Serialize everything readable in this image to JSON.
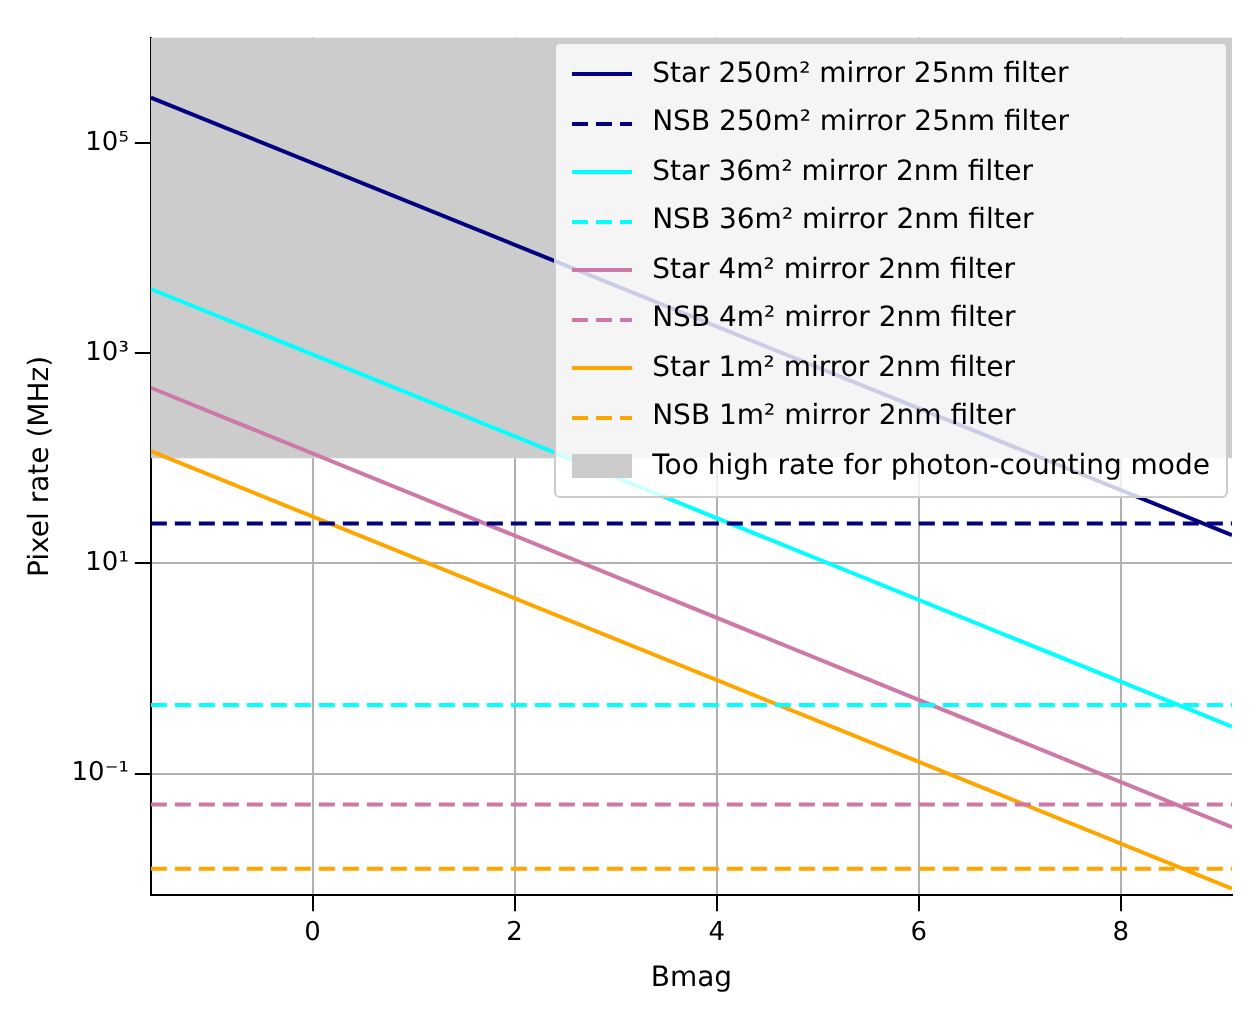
{
  "chart_data": {
    "type": "line",
    "xlabel": "Bmag",
    "ylabel": "Pixel rate (MHz)",
    "log": "y",
    "grid": true,
    "legend": "top right",
    "line_style": "solid",
    "marker": "none",
    "xlim": [
      -1.6,
      9.1
    ],
    "xticks": [
      0,
      2,
      4,
      6,
      8
    ],
    "ylim": [
      0.007,
      1000000
    ],
    "yticks": [
      {
        "value": 0.1,
        "label": "10⁻¹"
      },
      {
        "value": 10,
        "label": "10¹"
      },
      {
        "value": 1000,
        "label": "10³"
      },
      {
        "value": 100000,
        "label": "10⁵"
      }
    ],
    "x": [
      -1.6,
      9.1
    ],
    "series": [
      {
        "name": "Star 250m² mirror 25nm filter",
        "color": "#000080",
        "values": [
          269000,
          18.6
        ]
      },
      {
        "name": "NSB 250m² mirror 25nm filter",
        "color": "#000080",
        "values": [
          24,
          24
        ],
        "line_style": "dashed"
      },
      {
        "name": "Star 36m² mirror 2nm filter",
        "color": "#00ffff",
        "values": [
          4070,
          0.28
        ]
      },
      {
        "name": "NSB 36m² mirror 2nm filter",
        "color": "#00ffff",
        "values": [
          0.45,
          0.45
        ],
        "line_style": "dashed"
      },
      {
        "name": "Star 4m² mirror 2nm filter",
        "color": "#cc79a7",
        "values": [
          468,
          0.031
        ]
      },
      {
        "name": "NSB 4m² mirror 2nm filter",
        "color": "#cc79a7",
        "values": [
          0.051,
          0.051
        ],
        "line_style": "dashed"
      },
      {
        "name": "Star 1m² mirror 2nm filter",
        "color": "#ffa500",
        "values": [
          117,
          0.0081
        ]
      },
      {
        "name": "NSB 1m² mirror 2nm filter",
        "color": "#ffa500",
        "values": [
          0.0125,
          0.0125
        ],
        "line_style": "dashed"
      }
    ],
    "bands": [
      {
        "axis": "y",
        "from": 100,
        "to": 1000000,
        "label": "Too high rate for photon-counting mode",
        "color": "#cccccc"
      }
    ]
  }
}
